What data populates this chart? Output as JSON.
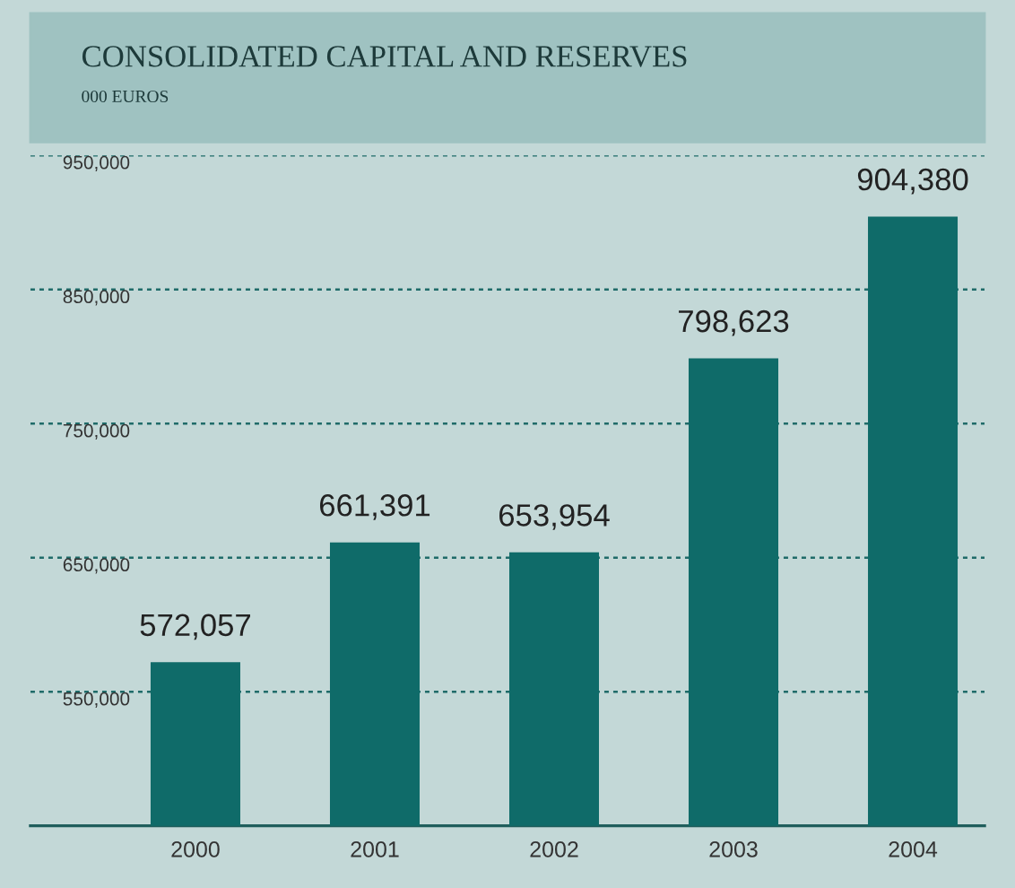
{
  "chart_data": {
    "type": "bar",
    "title": "CONSOLIDATED CAPITAL AND RESERVES",
    "subtitle": "000 EUROS",
    "categories": [
      "2000",
      "2001",
      "2002",
      "2003",
      "2004"
    ],
    "values": [
      572057,
      661391,
      653954,
      798623,
      904380
    ],
    "value_labels": [
      "572,057",
      "661,391",
      "653,954",
      "798,623",
      "904,380"
    ],
    "color": "#0f6b69",
    "ylim": [
      450000,
      950000
    ],
    "yticks": [
      {
        "value": 550000,
        "label": "550,000"
      },
      {
        "value": 650000,
        "label": "650,000"
      },
      {
        "value": 750000,
        "label": "750,000"
      },
      {
        "value": 850000,
        "label": "850,000"
      },
      {
        "value": 950000,
        "label": "950,000"
      }
    ],
    "grid": "y"
  }
}
